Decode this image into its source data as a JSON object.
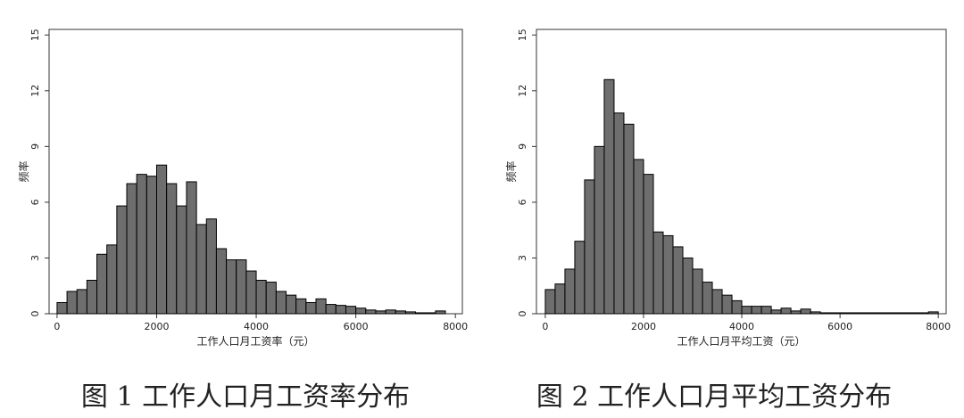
{
  "chart_data": [
    {
      "type": "histogram",
      "x_label": "工作人口月工资率（元）",
      "y_label": "频率",
      "caption": "图 1 工作人口月工资率分布",
      "color": "#6e6e6e",
      "bins": [
        0,
        200,
        400,
        600,
        800,
        1000,
        1200,
        1400,
        1600,
        1800,
        2000,
        2200,
        2400,
        2600,
        2800,
        3000,
        3200,
        3400,
        3600,
        3800,
        4000,
        4200,
        4400,
        4600,
        4800,
        5000,
        5200,
        5400,
        5600,
        5800,
        6000,
        6200,
        6400,
        6600,
        6800,
        7000,
        7200,
        7400,
        7600,
        7800
      ],
      "values": [
        0.6,
        1.2,
        1.3,
        1.8,
        3.2,
        3.7,
        5.8,
        7.0,
        7.5,
        7.4,
        8.0,
        7.0,
        5.8,
        7.1,
        4.8,
        5.1,
        3.5,
        2.9,
        2.9,
        2.3,
        1.8,
        1.7,
        1.2,
        1.0,
        0.8,
        0.6,
        0.8,
        0.5,
        0.45,
        0.4,
        0.3,
        0.2,
        0.15,
        0.2,
        0.15,
        0.1,
        0.05,
        0.05,
        0.15
      ],
      "xlim": [
        -160,
        8140
      ],
      "xticks": [
        0,
        2000,
        4000,
        6000,
        8000
      ],
      "ylim": [
        0,
        15.3
      ],
      "yticks": [
        0,
        3,
        6,
        9,
        12,
        15
      ]
    },
    {
      "type": "histogram",
      "x_label": "工作人口月平均工资（元）",
      "y_label": "频率",
      "caption": "图 2 工作人口月平均工资分布",
      "color": "#6e6e6e",
      "bins": [
        0,
        200,
        400,
        600,
        800,
        1000,
        1200,
        1400,
        1600,
        1800,
        2000,
        2200,
        2400,
        2600,
        2800,
        3000,
        3200,
        3400,
        3600,
        3800,
        4000,
        4200,
        4400,
        4600,
        4800,
        5000,
        5200,
        5400,
        5600,
        5800,
        6000,
        6200,
        6400,
        6600,
        6800,
        7000,
        7200,
        7400,
        7600,
        7800,
        8000
      ],
      "values": [
        1.3,
        1.6,
        2.4,
        3.9,
        7.2,
        9.0,
        12.6,
        10.8,
        10.2,
        8.3,
        7.5,
        4.4,
        4.2,
        3.6,
        3.0,
        2.4,
        1.7,
        1.3,
        1.0,
        0.7,
        0.4,
        0.4,
        0.4,
        0.2,
        0.3,
        0.15,
        0.25,
        0.1,
        0.05,
        0.05,
        0.05,
        0.05,
        0.05,
        0.05,
        0.05,
        0.05,
        0.05,
        0.05,
        0.05,
        0.1
      ],
      "xlim": [
        -180,
        8160
      ],
      "xticks": [
        0,
        2000,
        4000,
        6000,
        8000
      ],
      "ylim": [
        0,
        15.3
      ],
      "yticks": [
        0,
        3,
        6,
        9,
        12,
        15
      ]
    }
  ]
}
